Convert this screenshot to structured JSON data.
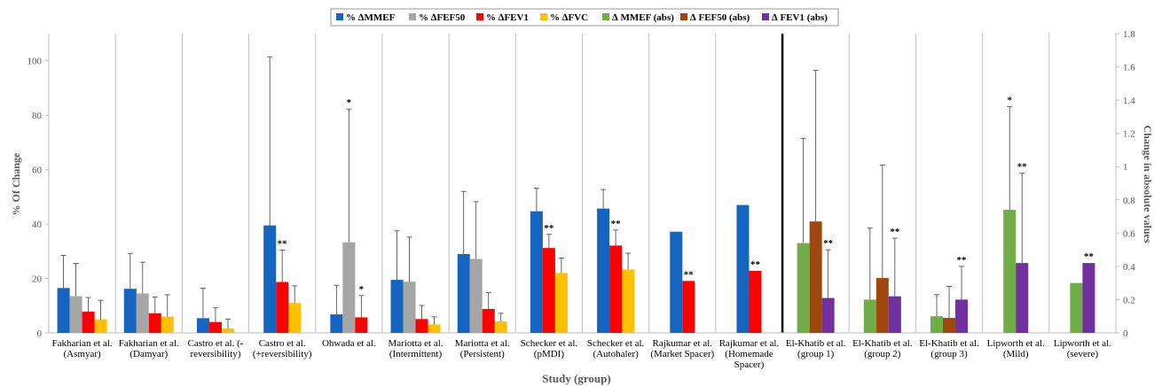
{
  "chart_data": {
    "type": "bar",
    "xlabel": "Study (group)",
    "ylabel_left": "% Of Change",
    "ylabel_right": "Change in absolute values",
    "ylim_left": [
      0,
      110
    ],
    "ylim_right": [
      0,
      1.8
    ],
    "yticks_left": [
      0,
      20,
      40,
      60,
      80,
      100
    ],
    "yticks_right": [
      0,
      0.2,
      0.4,
      0.6,
      0.8,
      1,
      1.2,
      1.4,
      1.6,
      1.8
    ],
    "legend_position": "top",
    "categories": [
      [
        "Fakharian et al.",
        "(Asmyar)"
      ],
      [
        "Fakharian et al.",
        "(Damyar)"
      ],
      [
        "Castro et al. (-",
        "reversibility)"
      ],
      [
        "Castro et al.",
        "(+reversibility)"
      ],
      [
        "Ohwada et al."
      ],
      [
        "Mariotta et al.",
        "(Intermittent)"
      ],
      [
        "Mariotta et al.",
        "(Persistent)"
      ],
      [
        "Schecker et al.",
        "(pMDI)"
      ],
      [
        "Schecker et al.",
        "(Autohaler)"
      ],
      [
        "Rajkumar et al.",
        "(Market Spacer)"
      ],
      [
        "Rajkumar et al.",
        "(Homemade",
        "Spacer)"
      ],
      [
        "El-Khatib et al.",
        "(group 1)"
      ],
      [
        "El-Khatib et al.",
        "(group 2)"
      ],
      [
        "El-Khatib et al.",
        "(group 3)"
      ],
      [
        "Lipworth et al.",
        "(Mild)"
      ],
      [
        "Lipworth et al.",
        "(severe)"
      ]
    ],
    "series": [
      {
        "name": "% ∆MMEF",
        "color": "#1565C0",
        "axis": "left",
        "values": [
          16.5,
          16.2,
          5.4,
          39.5,
          6.8,
          19.5,
          29,
          44.7,
          45.7,
          37.2,
          47,
          null,
          null,
          null,
          null,
          null
        ],
        "errors": [
          12,
          13,
          11,
          62,
          10.7,
          18,
          23,
          8.5,
          7,
          null,
          null,
          null,
          null,
          null,
          null,
          null
        ],
        "sig": [
          "",
          "",
          "",
          "",
          "",
          "",
          "",
          "",
          "",
          "",
          "",
          "",
          "",
          "",
          "",
          ""
        ]
      },
      {
        "name": "% ∆FEF50",
        "color": "#A6A6A6",
        "axis": "left",
        "values": [
          13.5,
          14.5,
          null,
          null,
          33.3,
          18.8,
          27.2,
          null,
          null,
          null,
          null,
          null,
          null,
          null,
          null,
          null
        ],
        "errors": [
          12,
          11.5,
          null,
          null,
          49,
          16.4,
          21,
          null,
          null,
          null,
          null,
          null,
          null,
          null,
          null,
          null
        ],
        "sig": [
          "",
          "",
          "",
          "",
          "*",
          "",
          "",
          "",
          "",
          "",
          "",
          "",
          "",
          "",
          "",
          ""
        ]
      },
      {
        "name": "% ∆FEV1",
        "color": "#FF0000",
        "axis": "left",
        "values": [
          7.8,
          7.2,
          4,
          18.7,
          5.7,
          5.1,
          8.8,
          31.2,
          32.1,
          19.1,
          22.8,
          null,
          null,
          null,
          null,
          null
        ],
        "errors": [
          5.2,
          6,
          5.2,
          11.8,
          8,
          5,
          6,
          5,
          5.7,
          null,
          null,
          null,
          null,
          null,
          null,
          null
        ],
        "sig": [
          "",
          "",
          "",
          "**",
          "*",
          "",
          "",
          "**",
          "**",
          "**",
          "**",
          "",
          "",
          "",
          "",
          ""
        ]
      },
      {
        "name": "% ∆FVC",
        "color": "#FFC000",
        "axis": "left",
        "values": [
          5,
          6,
          1.6,
          11,
          null,
          3.1,
          4.2,
          22,
          23.3,
          null,
          null,
          null,
          null,
          null,
          null,
          null
        ],
        "errors": [
          7,
          8,
          3.5,
          6.3,
          null,
          2.8,
          3,
          5.5,
          6,
          null,
          null,
          null,
          null,
          null,
          null,
          null
        ],
        "sig": [
          "",
          "",
          "",
          "",
          "",
          "",
          "",
          "",
          "",
          "",
          "",
          "",
          "",
          "",
          "",
          ""
        ]
      },
      {
        "name": "∆ MMEF (abs)",
        "color": "#70AD47",
        "axis": "right",
        "values": [
          null,
          null,
          null,
          null,
          null,
          null,
          null,
          null,
          null,
          null,
          null,
          0.54,
          0.2,
          0.1,
          0.74,
          0.3
        ],
        "errors": [
          null,
          null,
          null,
          null,
          null,
          null,
          null,
          null,
          null,
          null,
          null,
          0.63,
          0.43,
          0.13,
          0.62,
          null
        ],
        "sig": [
          "",
          "",
          "",
          "",
          "",
          "",
          "",
          "",
          "",
          "",
          "",
          "",
          "",
          "",
          "*",
          ""
        ]
      },
      {
        "name": "∆ FEF50 (abs)",
        "color": "#9E480E",
        "axis": "right",
        "values": [
          null,
          null,
          null,
          null,
          null,
          null,
          null,
          null,
          null,
          null,
          null,
          0.67,
          0.33,
          0.09,
          null,
          null
        ],
        "errors": [
          null,
          null,
          null,
          null,
          null,
          null,
          null,
          null,
          null,
          null,
          null,
          0.91,
          0.68,
          0.19,
          null,
          null
        ],
        "sig": [
          "",
          "",
          "",
          "",
          "",
          "",
          "",
          "",
          "",
          "",
          "",
          "",
          "",
          "",
          "",
          ""
        ]
      },
      {
        "name": "∆ FEV1 (abs)",
        "color": "#7030A0",
        "axis": "right",
        "values": [
          null,
          null,
          null,
          null,
          null,
          null,
          null,
          null,
          null,
          null,
          null,
          0.21,
          0.22,
          0.2,
          0.42,
          0.42
        ],
        "errors": [
          null,
          null,
          null,
          null,
          null,
          null,
          null,
          null,
          null,
          null,
          null,
          0.29,
          0.35,
          0.2,
          0.54,
          null
        ],
        "sig": [
          "",
          "",
          "",
          "",
          "",
          "",
          "",
          "",
          "",
          "",
          "",
          "**",
          "**",
          "**",
          "**",
          "**"
        ]
      }
    ]
  }
}
